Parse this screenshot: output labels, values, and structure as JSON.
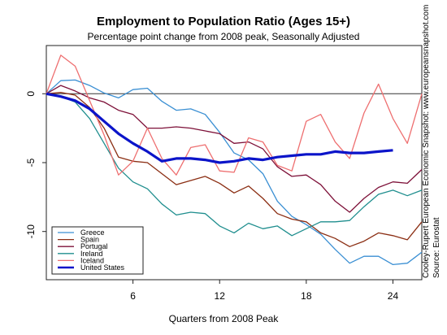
{
  "chart_data": {
    "type": "line",
    "title": "Employment to Population Ratio (Ages 15+)",
    "subtitle": "Percentage point change from 2008 peak, Seasonally Adjusted",
    "xlabel": "Quarters from 2008 Peak",
    "ylabel": "",
    "xlim": [
      0,
      26
    ],
    "ylim": [
      -13.5,
      3.5
    ],
    "x_ticks": [
      6,
      12,
      18,
      24
    ],
    "y_ticks": [
      0,
      -5,
      -10
    ],
    "x_tick_labels": [
      "6",
      "12",
      "18",
      "24"
    ],
    "y_tick_labels": [
      "0",
      "-5",
      "-10"
    ],
    "reference_line_y": 0,
    "grid": false,
    "legend_position": "bottom-left",
    "x": [
      0,
      1,
      2,
      3,
      4,
      5,
      6,
      7,
      8,
      9,
      10,
      11,
      12,
      13,
      14,
      15,
      16,
      17,
      18,
      19,
      20,
      21,
      22,
      23,
      24,
      25,
      26
    ],
    "series": [
      {
        "name": "Greece",
        "color": "#3a8fd3",
        "values": [
          0,
          0.95,
          1.0,
          0.6,
          0.05,
          -0.3,
          0.3,
          0.4,
          -0.55,
          -1.2,
          -1.1,
          -1.5,
          -2.8,
          -4.3,
          -4.8,
          -5.8,
          -7.8,
          -8.9,
          -9.5,
          -10.2,
          -11.3,
          -12.3,
          -11.8,
          -11.8,
          -12.4,
          -12.3,
          -11.5
        ]
      },
      {
        "name": "Spain",
        "color": "#8b2e13",
        "values": [
          0,
          0.1,
          -0.1,
          -1.0,
          -2.5,
          -4.6,
          -4.9,
          -5.0,
          -5.8,
          -6.6,
          -6.3,
          -6.0,
          -6.5,
          -7.2,
          -6.7,
          -7.6,
          -8.7,
          -9.1,
          -9.3,
          -10.1,
          -10.5,
          -11.1,
          -10.7,
          -10.1,
          -10.3,
          -10.6,
          -9.3
        ]
      },
      {
        "name": "Portugal",
        "color": "#7d1038",
        "values": [
          0,
          0.6,
          0.2,
          -0.3,
          -0.6,
          -1.2,
          -1.5,
          -2.5,
          -2.5,
          -2.4,
          -2.5,
          -2.7,
          -2.9,
          -3.6,
          -3.5,
          -4.0,
          -5.3,
          -6.0,
          -5.9,
          -6.6,
          -7.8,
          -8.6,
          -7.6,
          -6.8,
          -6.4,
          -6.5,
          -5.5
        ]
      },
      {
        "name": "Ireland",
        "color": "#1f8e8e",
        "values": [
          0,
          -0.2,
          -0.6,
          -1.8,
          -3.6,
          -5.4,
          -6.4,
          -6.9,
          -8.0,
          -8.8,
          -8.6,
          -8.7,
          -9.6,
          -10.1,
          -9.4,
          -9.8,
          -9.6,
          -10.3,
          -9.8,
          -9.3,
          -9.3,
          -9.2,
          -8.2,
          -7.3,
          -7.0,
          -7.4,
          -7.0
        ]
      },
      {
        "name": "Iceland",
        "color": "#ee6f70",
        "values": [
          0,
          2.8,
          2.0,
          -0.5,
          -3.0,
          -5.9,
          -4.9,
          -2.5,
          -4.7,
          -5.9,
          -3.9,
          -3.7,
          -5.6,
          -5.7,
          -3.2,
          -3.5,
          -5.2,
          -5.6,
          -2.0,
          -1.5,
          -3.5,
          -4.7,
          -1.4,
          0.7,
          -1.8,
          -3.6,
          0.0
        ]
      },
      {
        "name": "United States",
        "color": "#0b14c9",
        "values": [
          0,
          -0.2,
          -0.5,
          -1.1,
          -2.0,
          -2.9,
          -3.6,
          -4.2,
          -4.9,
          -4.7,
          -4.7,
          -4.8,
          -5.0,
          -4.9,
          -4.7,
          -4.8,
          -4.6,
          -4.5,
          -4.4,
          -4.4,
          -4.2,
          -4.3,
          -4.3,
          -4.2,
          -4.1,
          null,
          null
        ]
      }
    ]
  },
  "side_note": {
    "credit": "Cooley-Rupert European Economic Snapshot: www.europeansnapshot.com",
    "source": "Source: Eurostat"
  }
}
